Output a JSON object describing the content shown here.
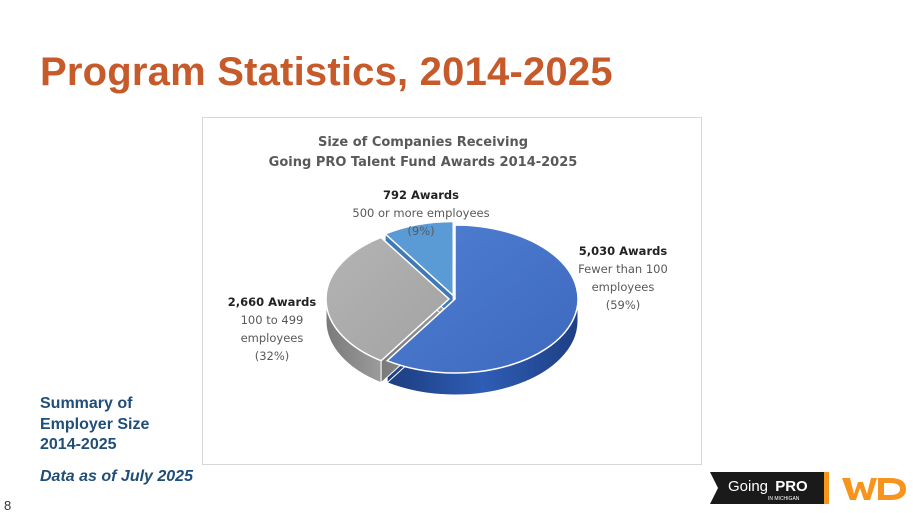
{
  "slide": {
    "title": "Program Statistics, 2014-2025",
    "summary_lines": [
      "Summary of",
      "Employer Size",
      "2014-2025"
    ],
    "data_note": "Data as of July 2025",
    "page_number": "8"
  },
  "logos": {
    "goingpro_text": "Going",
    "goingpro_bold": "PRO",
    "goingpro_sub": "IN MICHIGAN",
    "wd_text": "WD"
  },
  "colors": {
    "title": "#c65a2b",
    "summary": "#1f4e79",
    "slice_large": "#4472c4",
    "slice_mid": "#a5a5a5",
    "slice_small": "#5b9bd5",
    "accent_orange": "#f7941d"
  },
  "chart_data": {
    "type": "pie",
    "style": "3d-exploded",
    "title_lines": [
      "Size of Companies Receiving",
      "Going PRO Talent Fund Awards 2014-2025"
    ],
    "categories": [
      "Fewer than 100 employees",
      "100 to 499 employees",
      "500 or more employees"
    ],
    "values": [
      5030,
      2660,
      792
    ],
    "percents": [
      59,
      32,
      9
    ],
    "labels": [
      {
        "heading": "5,030 Awards",
        "lines": [
          "Fewer than 100",
          "employees",
          "(59%)"
        ]
      },
      {
        "heading": "2,660 Awards",
        "lines": [
          "100 to 499",
          "employees",
          "(32%)"
        ]
      },
      {
        "heading": "792 Awards",
        "lines": [
          "500 or more employees",
          "(9%)"
        ]
      }
    ],
    "colors": [
      "#4472c4",
      "#a5a5a5",
      "#5b9bd5"
    ]
  }
}
